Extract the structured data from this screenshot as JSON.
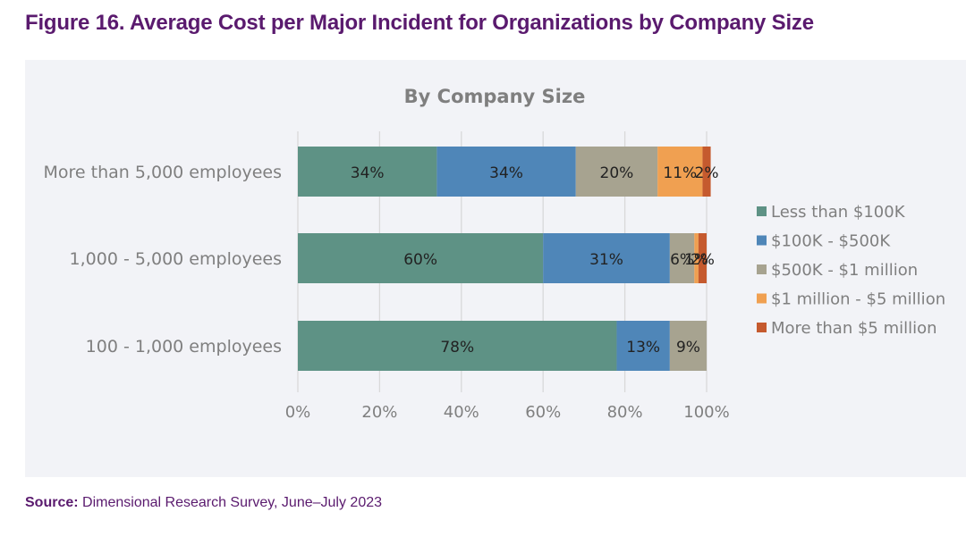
{
  "figure": {
    "title": "Figure 16. Average Cost per Major Incident for Organizations by Company Size",
    "source_label": "Source:",
    "source_text": " Dimensional Research Survey, June–July 2023"
  },
  "colors": {
    "title": "#5a1a6e",
    "panel_bg": "#f2f3f7",
    "axis_text": "#7f7f7f",
    "gridline": "#d9d9d9",
    "data_label": "#222222"
  },
  "chart_data": {
    "type": "bar",
    "orientation": "horizontal",
    "stacked": true,
    "normalized": true,
    "title": "By Company Size",
    "xlabel": "",
    "ylabel": "",
    "xlim": [
      0,
      100
    ],
    "xticks": [
      "0%",
      "20%",
      "40%",
      "60%",
      "80%",
      "100%"
    ],
    "xtick_values": [
      0,
      20,
      40,
      60,
      80,
      100
    ],
    "grid": true,
    "legend_position": "right",
    "categories": [
      "More than 5,000 employees",
      "1,000 - 5,000 employees",
      "100 - 1,000 employees"
    ],
    "series": [
      {
        "name": "Less than $100K",
        "color": "#5e9285",
        "values": [
          34,
          60,
          78
        ]
      },
      {
        "name": "$100K - $500K",
        "color": "#4f86b8",
        "values": [
          34,
          31,
          13
        ]
      },
      {
        "name": "$500K - $1 million",
        "color": "#a7a390",
        "values": [
          20,
          6,
          9
        ]
      },
      {
        "name": "$1 million - $5 million",
        "color": "#f0a051",
        "values": [
          11,
          1,
          0
        ]
      },
      {
        "name": "More than $5 million",
        "color": "#c55a2e",
        "values": [
          2,
          2,
          0
        ]
      }
    ],
    "data_labels": [
      [
        "34%",
        "34%",
        "20%",
        "11%",
        "2%"
      ],
      [
        "60%",
        "31%",
        "6%",
        "1%",
        "2%"
      ],
      [
        "78%",
        "13%",
        "9%",
        "",
        ""
      ]
    ]
  }
}
